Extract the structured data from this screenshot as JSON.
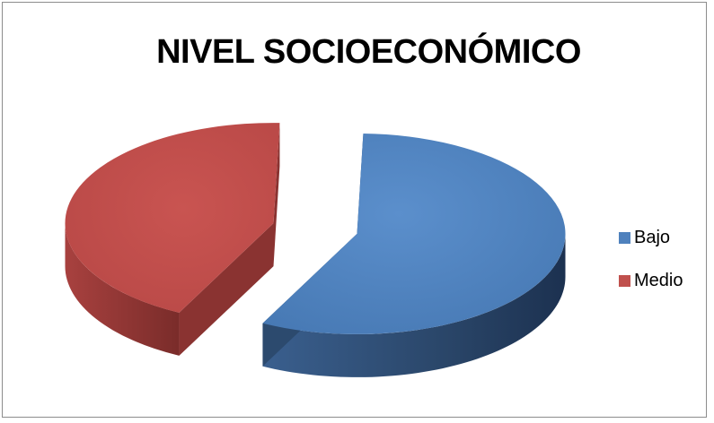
{
  "chart_data": {
    "type": "pie",
    "title": "NIVEL SOCIOECONÓMICO",
    "style": "3d-exploded",
    "legend_position": "right",
    "categories": [
      "Bajo",
      "Medio"
    ],
    "values": [
      57,
      43
    ],
    "colors": [
      "#4f81bd",
      "#c0504d"
    ],
    "side_colors": [
      "#2c4a6e",
      "#8a3331"
    ]
  }
}
